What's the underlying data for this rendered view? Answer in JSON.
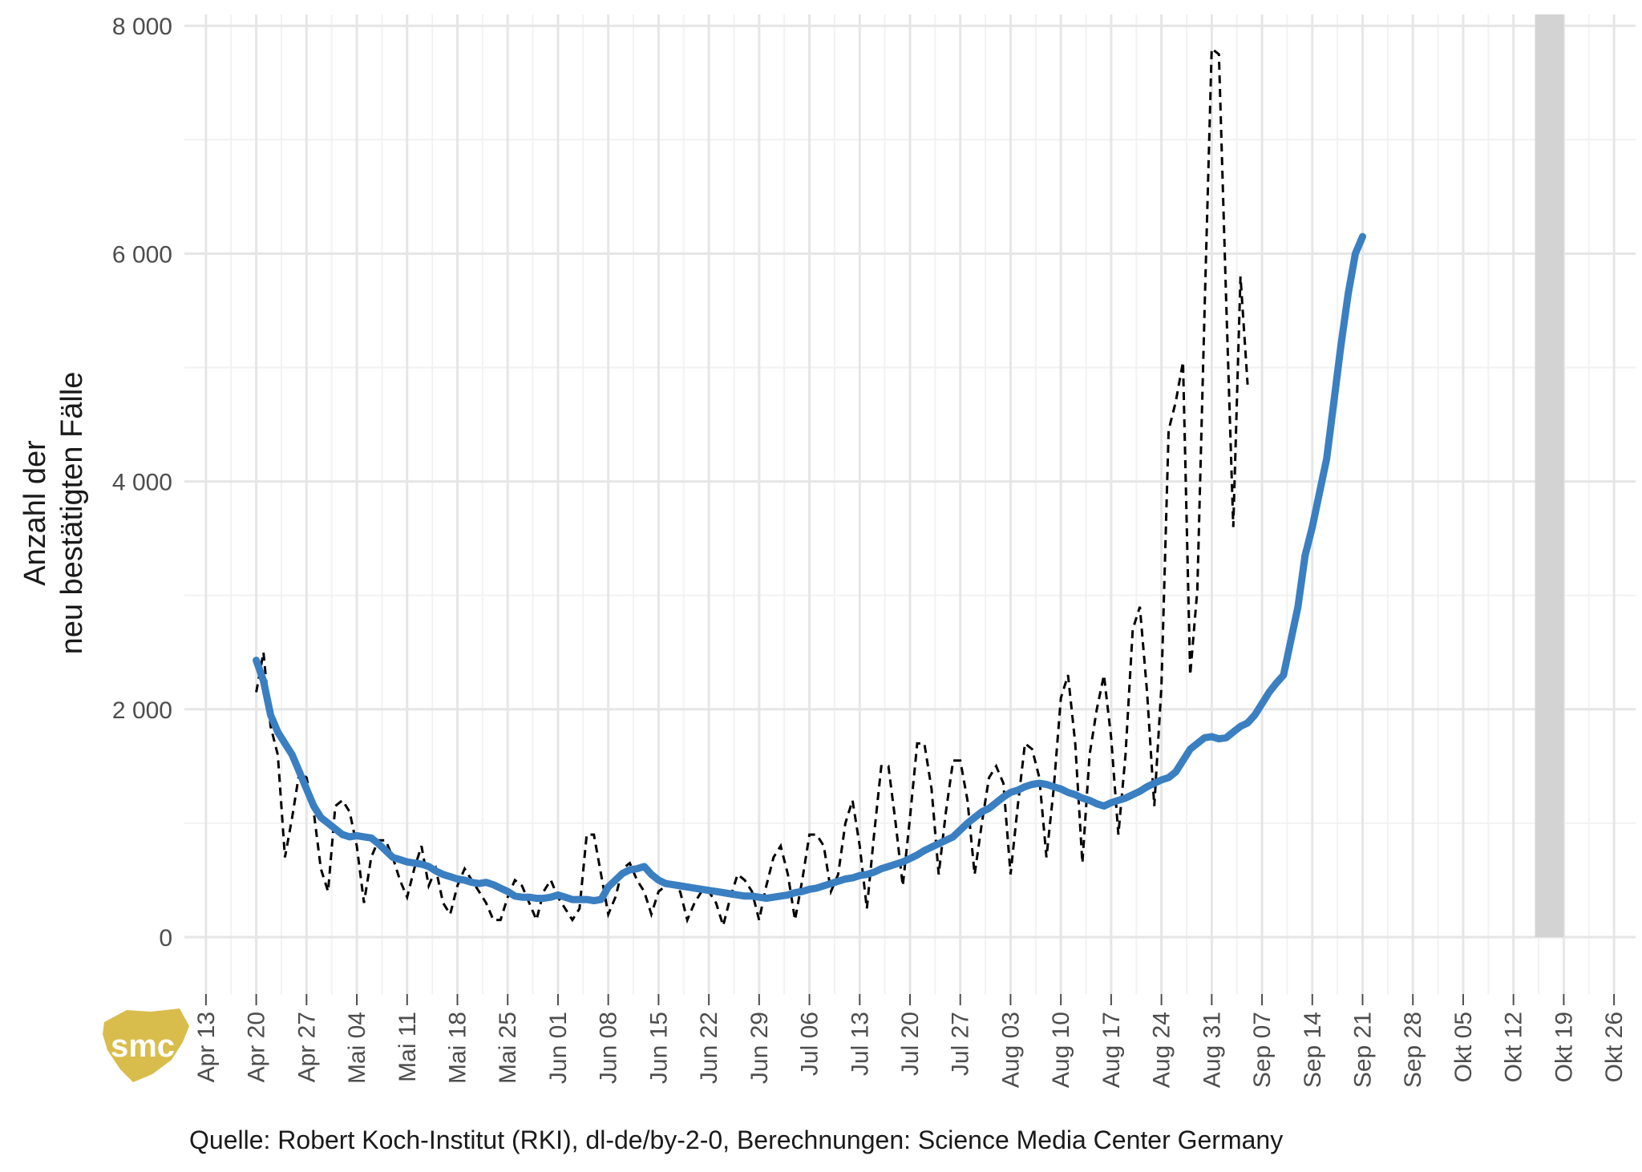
{
  "caption": "Quelle: Robert Koch-Institut (RKI), dl-de/by-2-0, Berechnungen: Science Media Center Germany",
  "logo": {
    "text": "smc",
    "color": "#d9bd4c"
  },
  "chart_data": {
    "type": "line",
    "ylabel": [
      "Anzahl der",
      "neu bestätigten Fälle"
    ],
    "xlabel": "",
    "ylim": [
      -500,
      8100
    ],
    "y_ticks": [
      0,
      2000,
      4000,
      6000,
      8000
    ],
    "y_tick_labels": [
      "0",
      "2 000",
      "4 000",
      "6 000",
      "8 000"
    ],
    "x_range": [
      "2020-04-10",
      "2020-10-29"
    ],
    "x_ticks": [
      "2020-04-13",
      "2020-04-20",
      "2020-04-27",
      "2020-05-04",
      "2020-05-11",
      "2020-05-18",
      "2020-05-25",
      "2020-06-01",
      "2020-06-08",
      "2020-06-15",
      "2020-06-22",
      "2020-06-29",
      "2020-07-06",
      "2020-07-13",
      "2020-07-20",
      "2020-07-27",
      "2020-08-03",
      "2020-08-10",
      "2020-08-17",
      "2020-08-24",
      "2020-08-31",
      "2020-09-07",
      "2020-09-14",
      "2020-09-21",
      "2020-09-28",
      "2020-10-05",
      "2020-10-12",
      "2020-10-19",
      "2020-10-26"
    ],
    "x_tick_labels": [
      "Apr 13",
      "Apr 20",
      "Apr 27",
      "Mai 04",
      "Mai 11",
      "Mai 18",
      "Mai 25",
      "Jun 01",
      "Jun 08",
      "Jun 15",
      "Jun 22",
      "Jun 29",
      "Jul 06",
      "Jul 13",
      "Jul 20",
      "Jul 27",
      "Aug 03",
      "Aug 10",
      "Aug 17",
      "Aug 24",
      "Aug 31",
      "Sep 07",
      "Sep 14",
      "Sep 21",
      "Sep 28",
      "Okt 05",
      "Okt 12",
      "Okt 19",
      "Okt 26"
    ],
    "grid": true,
    "shaded_region": {
      "from": "2020-10-15",
      "to": "2020-10-19",
      "color": "#d3d3d3"
    },
    "series": [
      {
        "style": "dashed",
        "color": "#000000",
        "x_start": "2020-04-20",
        "values": [
          2150,
          2500,
          1850,
          1600,
          700,
          1050,
          1450,
          1400,
          1100,
          600,
          400,
          1150,
          1200,
          1100,
          800,
          300,
          700,
          850,
          850,
          700,
          500,
          350,
          600,
          800,
          450,
          600,
          300,
          200,
          450,
          600,
          500,
          400,
          300,
          150,
          150,
          350,
          500,
          450,
          300,
          150,
          400,
          500,
          350,
          250,
          150,
          250,
          900,
          900,
          550,
          200,
          350,
          600,
          650,
          500,
          400,
          200,
          400,
          450,
          450,
          400,
          150,
          300,
          400,
          400,
          300,
          100,
          350,
          550,
          500,
          400,
          150,
          450,
          700,
          800,
          550,
          150,
          500,
          900,
          900,
          800,
          400,
          550,
          1000,
          1200,
          800,
          250,
          900,
          1500,
          1500,
          1000,
          450,
          1050,
          1700,
          1700,
          1300,
          550,
          1100,
          1550,
          1550,
          1200,
          550,
          1000,
          1400,
          1500,
          1350,
          550,
          1150,
          1700,
          1650,
          1400,
          700,
          1300,
          2100,
          2300,
          1700,
          650,
          1600,
          2000,
          2300,
          1750,
          900,
          1600,
          2700,
          2900,
          2150,
          1150,
          2200,
          4450,
          4700,
          5050,
          2300,
          3050,
          5500,
          7800,
          7750,
          5600,
          3600,
          5800,
          4850
        ],
        "name": ""
      },
      {
        "style": "solid",
        "color": "#3a7fc1",
        "x_start": "2020-04-20",
        "values": [
          2430,
          2250,
          1950,
          1800,
          1700,
          1600,
          1450,
          1300,
          1150,
          1050,
          1000,
          950,
          900,
          880,
          890,
          880,
          870,
          820,
          760,
          700,
          680,
          660,
          650,
          640,
          620,
          580,
          550,
          530,
          510,
          500,
          480,
          470,
          480,
          460,
          430,
          400,
          360,
          350,
          350,
          340,
          340,
          350,
          370,
          350,
          330,
          330,
          330,
          320,
          330,
          440,
          500,
          560,
          590,
          600,
          620,
          550,
          500,
          470,
          460,
          450,
          440,
          430,
          420,
          410,
          400,
          390,
          380,
          370,
          360,
          360,
          350,
          340,
          350,
          360,
          370,
          390,
          400,
          420,
          430,
          450,
          470,
          490,
          510,
          520,
          540,
          550,
          570,
          600,
          620,
          640,
          660,
          690,
          720,
          760,
          790,
          820,
          850,
          880,
          940,
          1000,
          1050,
          1100,
          1130,
          1180,
          1230,
          1270,
          1290,
          1320,
          1340,
          1350,
          1340,
          1320,
          1300,
          1270,
          1250,
          1220,
          1200,
          1170,
          1150,
          1180,
          1200,
          1220,
          1250,
          1280,
          1320,
          1350,
          1380,
          1400,
          1450,
          1550,
          1650,
          1700,
          1750,
          1760,
          1740,
          1750,
          1800,
          1850,
          1880,
          1950,
          2050,
          2150,
          2230,
          2300,
          2600,
          2900,
          3350,
          3600,
          3900,
          4200,
          4700,
          5200,
          5650,
          6000,
          6150
        ],
        "name": ""
      }
    ]
  }
}
